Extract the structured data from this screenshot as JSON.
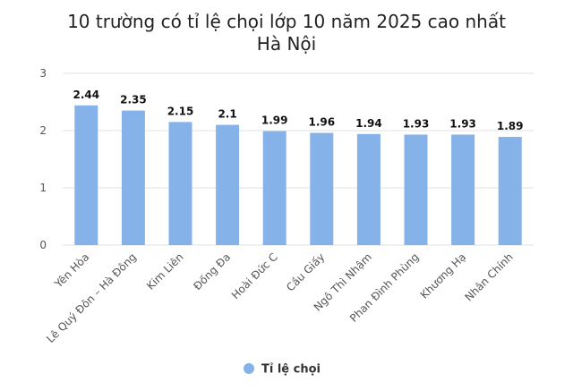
{
  "chart_data": {
    "type": "bar",
    "title_lines": [
      "10 trường có tỉ lệ chọi lớp 10 năm 2025 cao nhất",
      "Hà Nội"
    ],
    "categories": [
      "Yên Hòa",
      "Lê Quý Đôn – Hà Đông",
      "Kim Liên",
      "Đống Đa",
      "Hoài Đức C",
      "Cầu Giấy",
      "Ngô Thì Nhậm",
      "Phan Đình Phùng",
      "Khương Hạ",
      "Nhân Chính"
    ],
    "series": [
      {
        "name": "Tỉ lệ chọi",
        "values": [
          2.44,
          2.35,
          2.15,
          2.1,
          1.99,
          1.96,
          1.94,
          1.93,
          1.93,
          1.89
        ],
        "labels": [
          "2.44",
          "2.35",
          "2.15",
          "2.1",
          "1.99",
          "1.96",
          "1.94",
          "1.93",
          "1.93",
          "1.89"
        ]
      }
    ],
    "yticks": [
      "0",
      "1",
      "2",
      "3"
    ],
    "ylim": [
      0,
      3
    ],
    "grid": true,
    "legend": "bottom-center",
    "bar_color": "#85B2E8",
    "grid_color": "#E0E0E0",
    "label_color": "#111111",
    "tick_color": "#555555"
  }
}
